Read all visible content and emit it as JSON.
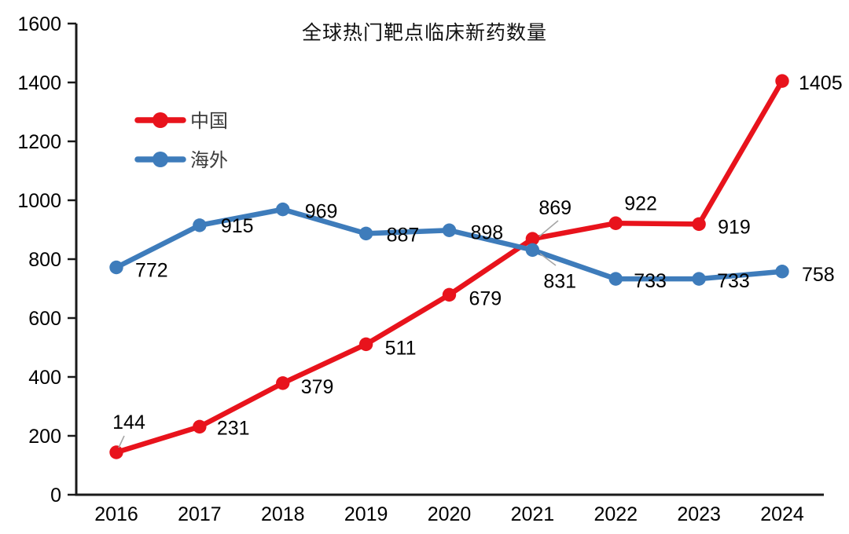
{
  "chart_data": {
    "type": "line",
    "title": "全球热门靶点临床新药数量",
    "categories": [
      "2016",
      "2017",
      "2018",
      "2019",
      "2020",
      "2021",
      "2022",
      "2023",
      "2024"
    ],
    "series": [
      {
        "name": "中国",
        "color": "#e8131c",
        "values": [
          144,
          231,
          379,
          511,
          679,
          869,
          922,
          919,
          1405
        ]
      },
      {
        "name": "海外",
        "color": "#3e7cbb",
        "values": [
          772,
          915,
          969,
          887,
          898,
          831,
          733,
          733,
          758
        ]
      }
    ],
    "xlabel": "",
    "ylabel": "",
    "ylim": [
      0,
      1600
    ],
    "yticks": [
      0,
      200,
      400,
      600,
      800,
      1000,
      1200,
      1400,
      1600
    ],
    "grid": false,
    "legend_position": "upper-left-inside",
    "marker": "circle",
    "colors": {
      "axis": "#1a1a1a",
      "label": "#000000",
      "leader_line": "#a6a6a6",
      "background": "#ffffff"
    }
  }
}
